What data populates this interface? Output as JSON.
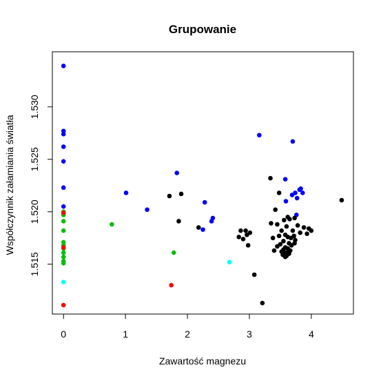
{
  "chart_data": {
    "type": "scatter",
    "title": "Grupowanie",
    "xlabel": "Zawartość magnezu",
    "ylabel": "Współczynnik załamiania światła",
    "xlim": [
      -0.18,
      4.68
    ],
    "ylim": [
      1.51025,
      1.53525
    ],
    "xticks": [
      0,
      1,
      2,
      3,
      4
    ],
    "xtick_labels": [
      "0",
      "1",
      "2",
      "3",
      "4"
    ],
    "yticks": [
      1.515,
      1.52,
      1.525,
      1.53
    ],
    "ytick_labels": [
      "1.515",
      "1.520",
      "1.525",
      "1.530"
    ],
    "grid": false,
    "legend": "none",
    "series": [
      {
        "color": "#0000ff",
        "points": [
          [
            0,
            1.5339
          ],
          [
            0,
            1.5277
          ],
          [
            0,
            1.5274
          ],
          [
            0,
            1.5262
          ],
          [
            0,
            1.5248
          ],
          [
            0,
            1.5223
          ],
          [
            0,
            1.5205
          ],
          [
            1.01,
            1.5218
          ],
          [
            1.35,
            1.5202
          ],
          [
            1.83,
            1.5237
          ],
          [
            2.28,
            1.5209
          ],
          [
            2.25,
            1.5183
          ],
          [
            2.41,
            1.5194
          ],
          [
            2.39,
            1.5191
          ],
          [
            3.16,
            1.5273
          ],
          [
            3.7,
            1.5267
          ],
          [
            3.58,
            1.5231
          ],
          [
            3.83,
            1.5222
          ],
          [
            3.81,
            1.5221
          ],
          [
            3.86,
            1.5218
          ],
          [
            3.74,
            1.5218
          ],
          [
            3.69,
            1.5216
          ],
          [
            3.77,
            1.5213
          ],
          [
            3.59,
            1.521
          ],
          [
            3.76,
            1.5197
          ]
        ]
      },
      {
        "color": "#000000",
        "points": [
          [
            1.71,
            1.5215
          ],
          [
            1.9,
            1.5217
          ],
          [
            1.86,
            1.5191
          ],
          [
            2.18,
            1.5185
          ],
          [
            3.34,
            1.5232
          ],
          [
            3.48,
            1.5218
          ],
          [
            4.49,
            1.5211
          ],
          [
            3.42,
            1.5202
          ],
          [
            3.62,
            1.5195
          ],
          [
            3.65,
            1.5193
          ],
          [
            3.73,
            1.5194
          ],
          [
            3.56,
            1.5192
          ],
          [
            3.35,
            1.5189
          ],
          [
            3.45,
            1.5188
          ],
          [
            3.6,
            1.5186
          ],
          [
            3.78,
            1.5187
          ],
          [
            3.88,
            1.5185
          ],
          [
            3.96,
            1.5184
          ],
          [
            4.0,
            1.5182
          ],
          [
            3.52,
            1.5182
          ],
          [
            3.7,
            1.5182
          ],
          [
            3.82,
            1.518
          ],
          [
            3.93,
            1.5179
          ],
          [
            3.58,
            1.5178
          ],
          [
            3.48,
            1.5177
          ],
          [
            3.62,
            1.5176
          ],
          [
            3.67,
            1.5175
          ],
          [
            3.74,
            1.5173
          ],
          [
            3.55,
            1.5172
          ],
          [
            3.64,
            1.517
          ],
          [
            3.5,
            1.5169
          ],
          [
            3.68,
            1.5168
          ],
          [
            3.58,
            1.5166
          ],
          [
            3.62,
            1.5165
          ],
          [
            3.55,
            1.5164
          ],
          [
            3.66,
            1.5163
          ],
          [
            3.52,
            1.5162
          ],
          [
            3.6,
            1.5161
          ],
          [
            3.57,
            1.516
          ],
          [
            3.64,
            1.516
          ],
          [
            3.54,
            1.5159
          ],
          [
            3.6,
            1.5158
          ],
          [
            3.58,
            1.5157
          ],
          [
            3.4,
            1.5163
          ],
          [
            3.45,
            1.5167
          ],
          [
            3.73,
            1.517
          ],
          [
            3.72,
            1.5177
          ],
          [
            3.38,
            1.5175
          ],
          [
            2.86,
            1.5182
          ],
          [
            2.94,
            1.5182
          ],
          [
            2.83,
            1.5176
          ],
          [
            2.9,
            1.5174
          ],
          [
            3.01,
            1.518
          ],
          [
            2.98,
            1.5168
          ],
          [
            2.96,
            1.5178
          ],
          [
            3.08,
            1.514
          ],
          [
            3.21,
            1.5113
          ]
        ]
      },
      {
        "color": "#00c000",
        "points": [
          [
            0,
            1.52
          ],
          [
            0,
            1.5197
          ],
          [
            0,
            1.5191
          ],
          [
            0,
            1.5182
          ],
          [
            0,
            1.5171
          ],
          [
            0,
            1.5168
          ],
          [
            0,
            1.5165
          ],
          [
            0,
            1.5161
          ],
          [
            0,
            1.5157
          ],
          [
            0,
            1.5153
          ],
          [
            0,
            1.5151
          ],
          [
            0.78,
            1.5188
          ],
          [
            1.78,
            1.5161
          ]
        ]
      },
      {
        "color": "#ff0000",
        "points": [
          [
            0,
            1.5199
          ],
          [
            0,
            1.5166
          ],
          [
            1.74,
            1.513
          ],
          [
            0,
            1.5111
          ]
        ]
      },
      {
        "color": "#00ffff",
        "points": [
          [
            2.68,
            1.5152
          ],
          [
            0,
            1.5133
          ]
        ]
      }
    ]
  }
}
